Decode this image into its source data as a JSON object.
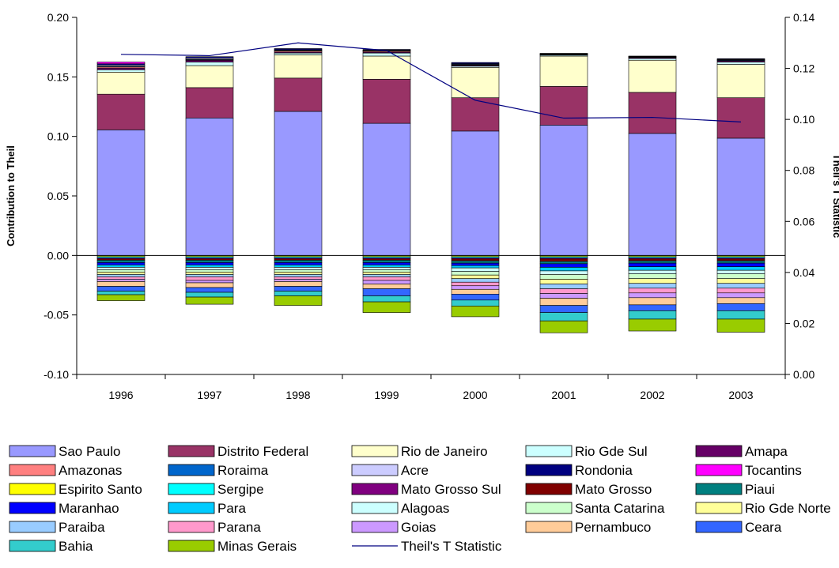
{
  "chart_data": {
    "type": "bar",
    "subtype": "stacked bar with line on secondary axis",
    "categories": [
      "1996",
      "1997",
      "1998",
      "1999",
      "2000",
      "2001",
      "2002",
      "2003"
    ],
    "ylabel": "Contribution to Theil",
    "y2label": "Theil's T Statistic",
    "ylim": [
      -0.1,
      0.2
    ],
    "y2lim": [
      0.0,
      0.14
    ],
    "yticks": [
      "0.20",
      "0.15",
      "0.10",
      "0.05",
      "0.00",
      "-0.05",
      "-0.10"
    ],
    "y2ticks": [
      "0.14",
      "0.12",
      "0.10",
      "0.08",
      "0.06",
      "0.04",
      "0.02",
      "0.00"
    ],
    "grid": false,
    "legend_placement": "bottom",
    "positive_series": [
      {
        "name": "Sao Paulo",
        "color": "#9999FF",
        "values": [
          0.1055,
          0.1155,
          0.121,
          0.111,
          0.1045,
          0.1095,
          0.1025,
          0.0985
        ]
      },
      {
        "name": "Distrito Federal",
        "color": "#993366",
        "values": [
          0.03,
          0.0255,
          0.028,
          0.037,
          0.028,
          0.0325,
          0.0345,
          0.034
        ]
      },
      {
        "name": "Rio de Janeiro",
        "color": "#FFFFCC",
        "values": [
          0.0185,
          0.0185,
          0.0195,
          0.0195,
          0.0255,
          0.0255,
          0.027,
          0.028
        ]
      },
      {
        "name": "Rio Gde Sul",
        "color": "#CCFFFF",
        "values": [
          0.002,
          0.003,
          0.0015,
          0.0025,
          0.001,
          0.0008,
          0.0015,
          0.002
        ]
      },
      {
        "name": "Amapa",
        "color": "#660066",
        "values": [
          0.0015,
          0.0015,
          0.0008,
          0.0008,
          0.0008,
          0.0005,
          0.0008,
          0.001
        ]
      },
      {
        "name": "Amazonas",
        "color": "#FF8080",
        "values": [
          0.001,
          0.0005,
          0.001,
          0.0008,
          0.0003,
          0.0002,
          0.0003,
          0.0003
        ]
      },
      {
        "name": "Roraima",
        "color": "#0066CC",
        "values": [
          0.0005,
          0.0005,
          0.0005,
          0.0005,
          0.0005,
          0.0003,
          0.0003,
          0.0005
        ]
      },
      {
        "name": "Acre",
        "color": "#CCCCFF",
        "values": [
          0.001,
          0.001,
          0.0005,
          0.0005,
          0.0005,
          0.0003,
          0.0003,
          0.0005
        ]
      },
      {
        "name": "Rondonia",
        "color": "#000080",
        "values": [
          0.001,
          0.001,
          0.001,
          0.0005,
          0.001,
          0.0002,
          0.0003,
          0.0005
        ]
      },
      {
        "name": "Tocantins",
        "color": "#FF00FF",
        "values": [
          0.0015,
          0.0,
          0.0,
          0.0,
          0.0,
          0.0,
          0.0,
          0.0
        ]
      }
    ],
    "negative_series": [
      {
        "name": "Espirito Santo",
        "color": "#FFFF00",
        "values": [
          -0.001,
          -0.001,
          -0.001,
          -0.001,
          -0.001,
          -0.001,
          -0.001,
          -0.001
        ]
      },
      {
        "name": "Sergipe",
        "color": "#00FFFF",
        "values": [
          -0.001,
          -0.001,
          -0.001,
          -0.001,
          -0.001,
          -0.001,
          -0.001,
          -0.001
        ]
      },
      {
        "name": "Mato Grosso Sul",
        "color": "#800080",
        "values": [
          -0.001,
          -0.001,
          -0.001,
          -0.001,
          -0.001,
          -0.001,
          -0.001,
          -0.001
        ]
      },
      {
        "name": "Mato Grosso",
        "color": "#800000",
        "values": [
          -0.001,
          -0.001,
          -0.001,
          -0.001,
          -0.0015,
          -0.002,
          -0.0015,
          -0.0015
        ]
      },
      {
        "name": "Piaui",
        "color": "#008080",
        "values": [
          -0.002,
          -0.002,
          -0.002,
          -0.002,
          -0.002,
          -0.002,
          -0.002,
          -0.002
        ]
      },
      {
        "name": "Maranhao",
        "color": "#0000FF",
        "values": [
          -0.002,
          -0.002,
          -0.002,
          -0.002,
          -0.002,
          -0.003,
          -0.003,
          -0.003
        ]
      },
      {
        "name": "Para",
        "color": "#00CCFF",
        "values": [
          -0.002,
          -0.002,
          -0.002,
          -0.002,
          -0.002,
          -0.003,
          -0.003,
          -0.003
        ]
      },
      {
        "name": "Alagoas",
        "color": "#CCFFFF",
        "values": [
          -0.002,
          -0.002,
          -0.002,
          -0.002,
          -0.003,
          -0.003,
          -0.003,
          -0.003
        ]
      },
      {
        "name": "Santa Catarina",
        "color": "#CCFFCC",
        "values": [
          -0.002,
          -0.002,
          -0.002,
          -0.002,
          -0.003,
          -0.004,
          -0.004,
          -0.004
        ]
      },
      {
        "name": "Rio Gde Norte",
        "color": "#FFFF99",
        "values": [
          -0.002,
          -0.002,
          -0.002,
          -0.002,
          -0.003,
          -0.004,
          -0.004,
          -0.004
        ]
      },
      {
        "name": "Paraiba",
        "color": "#99CCFF",
        "values": [
          -0.002,
          -0.002,
          -0.002,
          -0.002,
          -0.003,
          -0.004,
          -0.004,
          -0.004
        ]
      },
      {
        "name": "Parana",
        "color": "#FF99CC",
        "values": [
          -0.002,
          -0.003,
          -0.002,
          -0.003,
          -0.003,
          -0.004,
          -0.004,
          -0.004
        ]
      },
      {
        "name": "Goias",
        "color": "#CC99FF",
        "values": [
          -0.002,
          -0.002,
          -0.002,
          -0.003,
          -0.003,
          -0.004,
          -0.004,
          -0.004
        ]
      },
      {
        "name": "Pernambuco",
        "color": "#FFCC99",
        "values": [
          -0.004,
          -0.004,
          -0.004,
          -0.004,
          -0.004,
          -0.006,
          -0.006,
          -0.005
        ]
      },
      {
        "name": "Ceara",
        "color": "#3366FF",
        "values": [
          -0.004,
          -0.004,
          -0.004,
          -0.006,
          -0.005,
          -0.006,
          -0.005,
          -0.006
        ]
      },
      {
        "name": "Bahia",
        "color": "#33CCCC",
        "values": [
          -0.003,
          -0.004,
          -0.004,
          -0.005,
          -0.005,
          -0.007,
          -0.007,
          -0.007
        ]
      },
      {
        "name": "Minas Gerais",
        "color": "#99CC00",
        "values": [
          -0.005,
          -0.006,
          -0.008,
          -0.009,
          -0.009,
          -0.01,
          -0.01,
          -0.011
        ]
      }
    ],
    "line_series": {
      "name": "Theil's T Statistic",
      "color": "#000080",
      "axis": "secondary",
      "values": [
        0.1255,
        0.125,
        0.13,
        0.127,
        0.1075,
        0.1005,
        0.1008,
        0.099
      ]
    },
    "legend_order": [
      "Sao Paulo",
      "Distrito Federal",
      "Rio de Janeiro",
      "Rio Gde Sul",
      "Amapa",
      "Amazonas",
      "Roraima",
      "Acre",
      "Rondonia",
      "Tocantins",
      "Espirito Santo",
      "Sergipe",
      "Mato Grosso Sul",
      "Mato Grosso",
      "Piaui",
      "Maranhao",
      "Para",
      "Alagoas",
      "Santa Catarina",
      "Rio Gde Norte",
      "Paraiba",
      "Parana",
      "Goias",
      "Pernambuco",
      "Ceara",
      "Bahia",
      "Minas Gerais",
      "Theil's T Statistic"
    ]
  }
}
